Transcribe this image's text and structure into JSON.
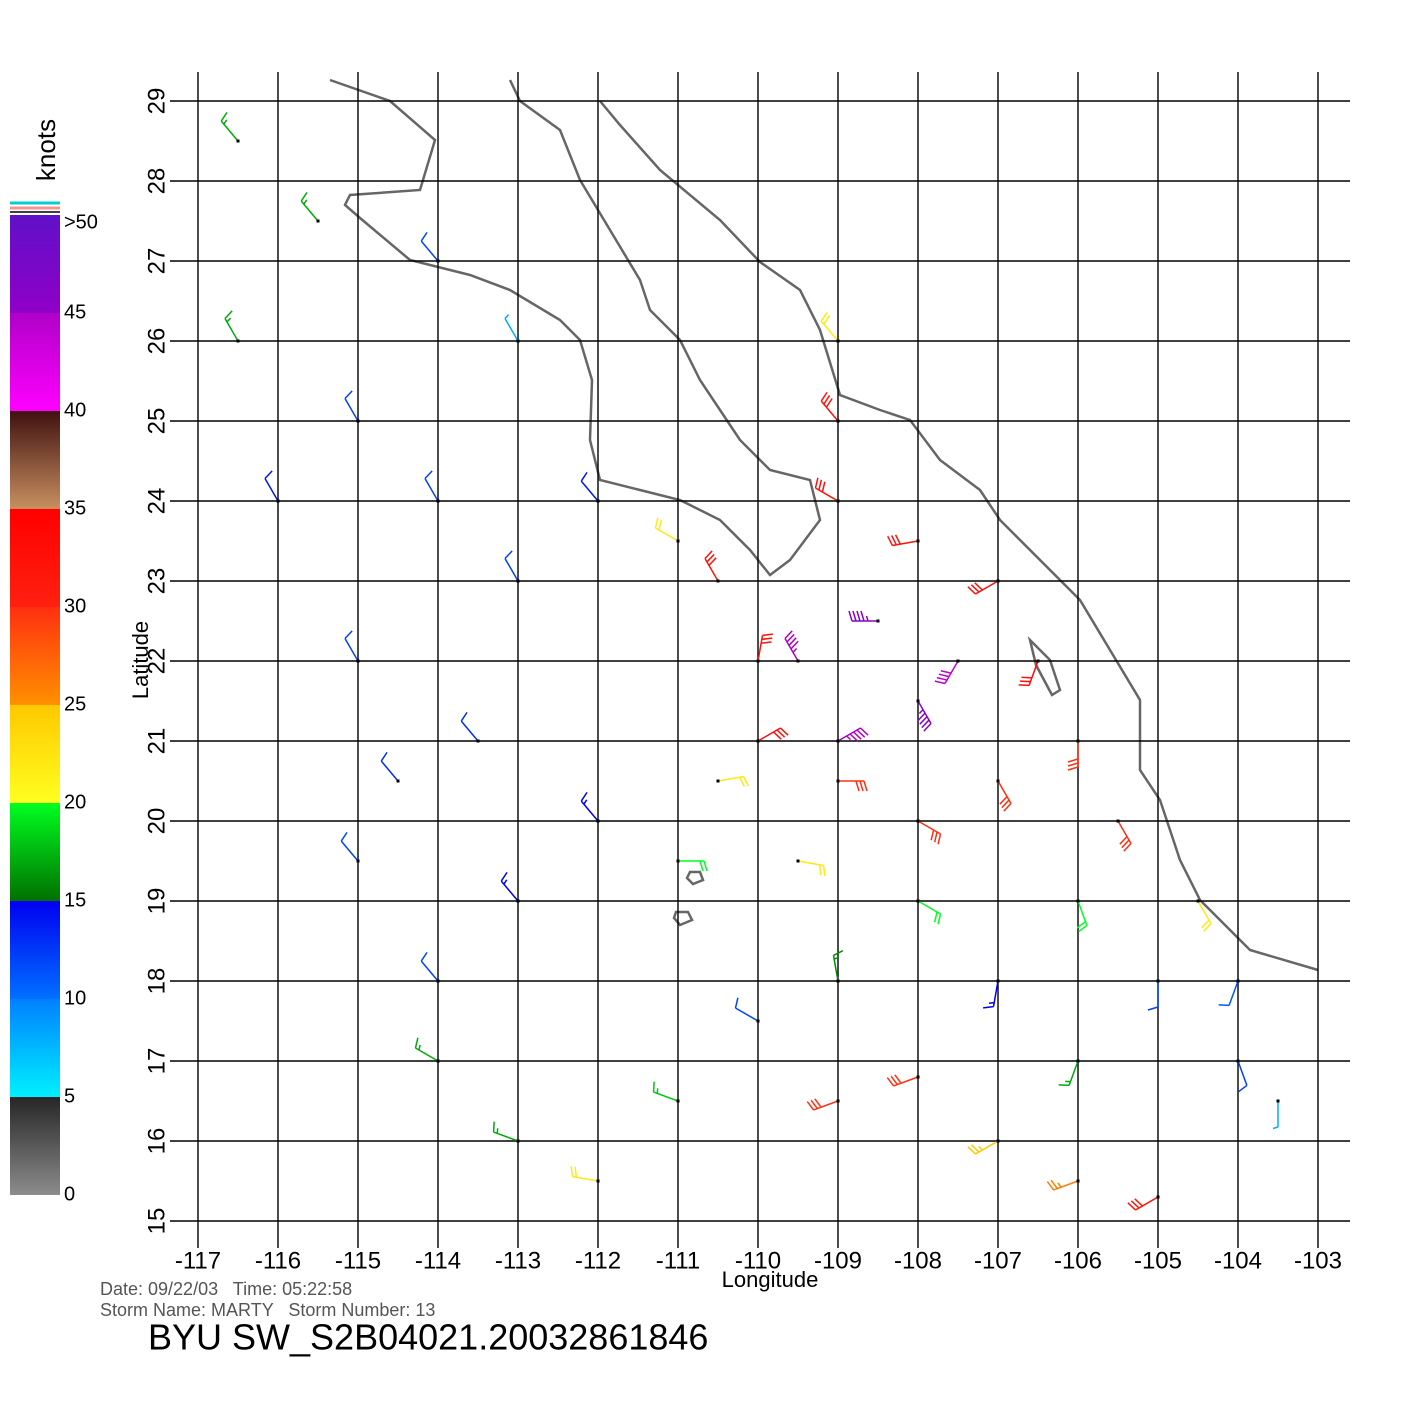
{
  "chart_data": {
    "type": "wind-barb",
    "xlabel": "Longitude",
    "ylabel": "Latitude",
    "xlim": [
      -117,
      -103
    ],
    "ylim": [
      15,
      29
    ],
    "xticks": [
      -117,
      -116,
      -115,
      -114,
      -113,
      -112,
      -111,
      -110,
      -109,
      -108,
      -107,
      -106,
      -105,
      -104,
      -103
    ],
    "yticks": [
      15,
      16,
      17,
      18,
      19,
      20,
      21,
      22,
      23,
      24,
      25,
      26,
      27,
      28,
      29
    ],
    "grid": true,
    "colorbar": {
      "label": "knots",
      "ticks": [
        0,
        5,
        10,
        15,
        20,
        25,
        30,
        35,
        40,
        45,
        {
          "value": 50,
          "label": ">50"
        }
      ],
      "colors": [
        [
          "#8c8c8c",
          "#262626"
        ],
        [
          "#00f0ff",
          "#0080ff"
        ],
        [
          "#0070ff",
          "#0000f0"
        ],
        [
          "#007000",
          "#00ff20"
        ],
        [
          "#ffff20",
          "#ffc800"
        ],
        [
          "#ff9000",
          "#ff3010"
        ],
        [
          "#ff2010",
          "#ff0000"
        ],
        [
          "#c89060",
          "#401010"
        ],
        [
          "#ff00ff",
          "#b000c8"
        ],
        [
          "#9000c8",
          "#6010c8"
        ]
      ]
    },
    "barbs": {
      "lon": [
        -116.5,
        -115.5,
        -116.5,
        -114,
        -113,
        -115,
        -114,
        -113,
        -115,
        -113.5,
        -112,
        -111,
        -110.5,
        -110,
        -110,
        -109,
        -108,
        -107,
        -106,
        -106.5,
        -107,
        -108,
        -109,
        -109,
        -109,
        -108.5,
        -109.5,
        -109,
        -108,
        -107.5,
        -112,
        -113,
        -114,
        -114,
        -113,
        -112,
        -111,
        -110,
        -109,
        -108,
        -109.5,
        -110.5,
        -111,
        -109,
        -108,
        -107,
        -106,
        -105,
        -106,
        -105,
        -104,
        -103.5,
        -104,
        -107,
        -106,
        -104.5,
        -105.5,
        -115,
        -114.5,
        -116
      ],
      "lat": [
        28.5,
        27.5,
        26,
        27,
        26,
        25,
        24,
        23,
        22,
        21,
        24,
        23.5,
        23,
        22,
        21,
        20.5,
        20,
        20.5,
        21,
        22,
        23,
        23.5,
        24,
        25,
        26,
        22.5,
        22,
        21,
        21.5,
        22,
        20,
        19,
        18,
        17,
        16,
        15.5,
        16.5,
        17.5,
        18,
        19,
        19.5,
        20.5,
        19.5,
        16.5,
        16.8,
        16,
        15.5,
        15.3,
        17,
        18,
        17,
        16.5,
        18,
        18,
        19,
        19,
        20,
        19.5,
        20.5,
        24
      ],
      "speed": [
        17,
        17,
        17,
        12,
        8,
        12,
        12,
        12,
        12,
        13,
        14,
        22,
        32,
        32,
        33,
        30,
        30,
        30,
        30,
        33,
        33,
        32,
        33,
        32,
        22,
        46,
        45,
        45,
        46,
        44,
        15,
        15,
        12,
        17,
        17,
        22,
        18,
        12,
        16,
        20,
        22,
        22,
        20,
        30,
        30,
        25,
        26,
        32,
        17,
        12,
        12,
        8,
        11,
        15,
        20,
        22,
        30,
        12,
        13,
        14
      ],
      "direction": [
        320,
        320,
        330,
        320,
        330,
        330,
        330,
        330,
        330,
        320,
        320,
        300,
        330,
        10,
        60,
        90,
        120,
        150,
        180,
        200,
        240,
        260,
        300,
        320,
        320,
        270,
        330,
        60,
        150,
        210,
        320,
        320,
        320,
        300,
        290,
        280,
        290,
        300,
        350,
        120,
        100,
        80,
        90,
        250,
        250,
        240,
        250,
        240,
        200,
        180,
        160,
        180,
        200,
        190,
        160,
        150,
        150,
        320,
        320,
        330
      ]
    }
  },
  "footer": {
    "date_line": "Date: 09/22/03   Time: 05:22:58",
    "storm_line": "Storm Name: MARTY   Storm Number: 13",
    "title": "BYU SW_S2B04021.20032861846"
  }
}
